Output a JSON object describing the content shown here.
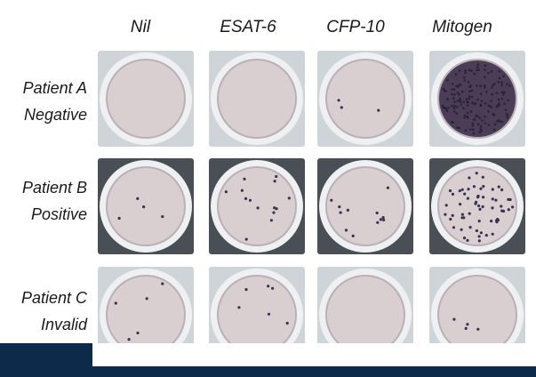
{
  "columns": [
    "Nil",
    "ESAT-6",
    "CFP-10",
    "Mitogen"
  ],
  "rows": [
    {
      "line1": "Patient A",
      "line2": "Negative"
    },
    {
      "line1": "Patient B",
      "line2": "Positive"
    },
    {
      "line1": "Patient C",
      "line2": "Invalid"
    }
  ],
  "colors": {
    "well_fill": "#d9cfd0",
    "well_rim": "#eef0f2",
    "spot": "#3a3350",
    "mitogen_fill": "#4b3d55",
    "footer": "#0d2a4a"
  }
}
